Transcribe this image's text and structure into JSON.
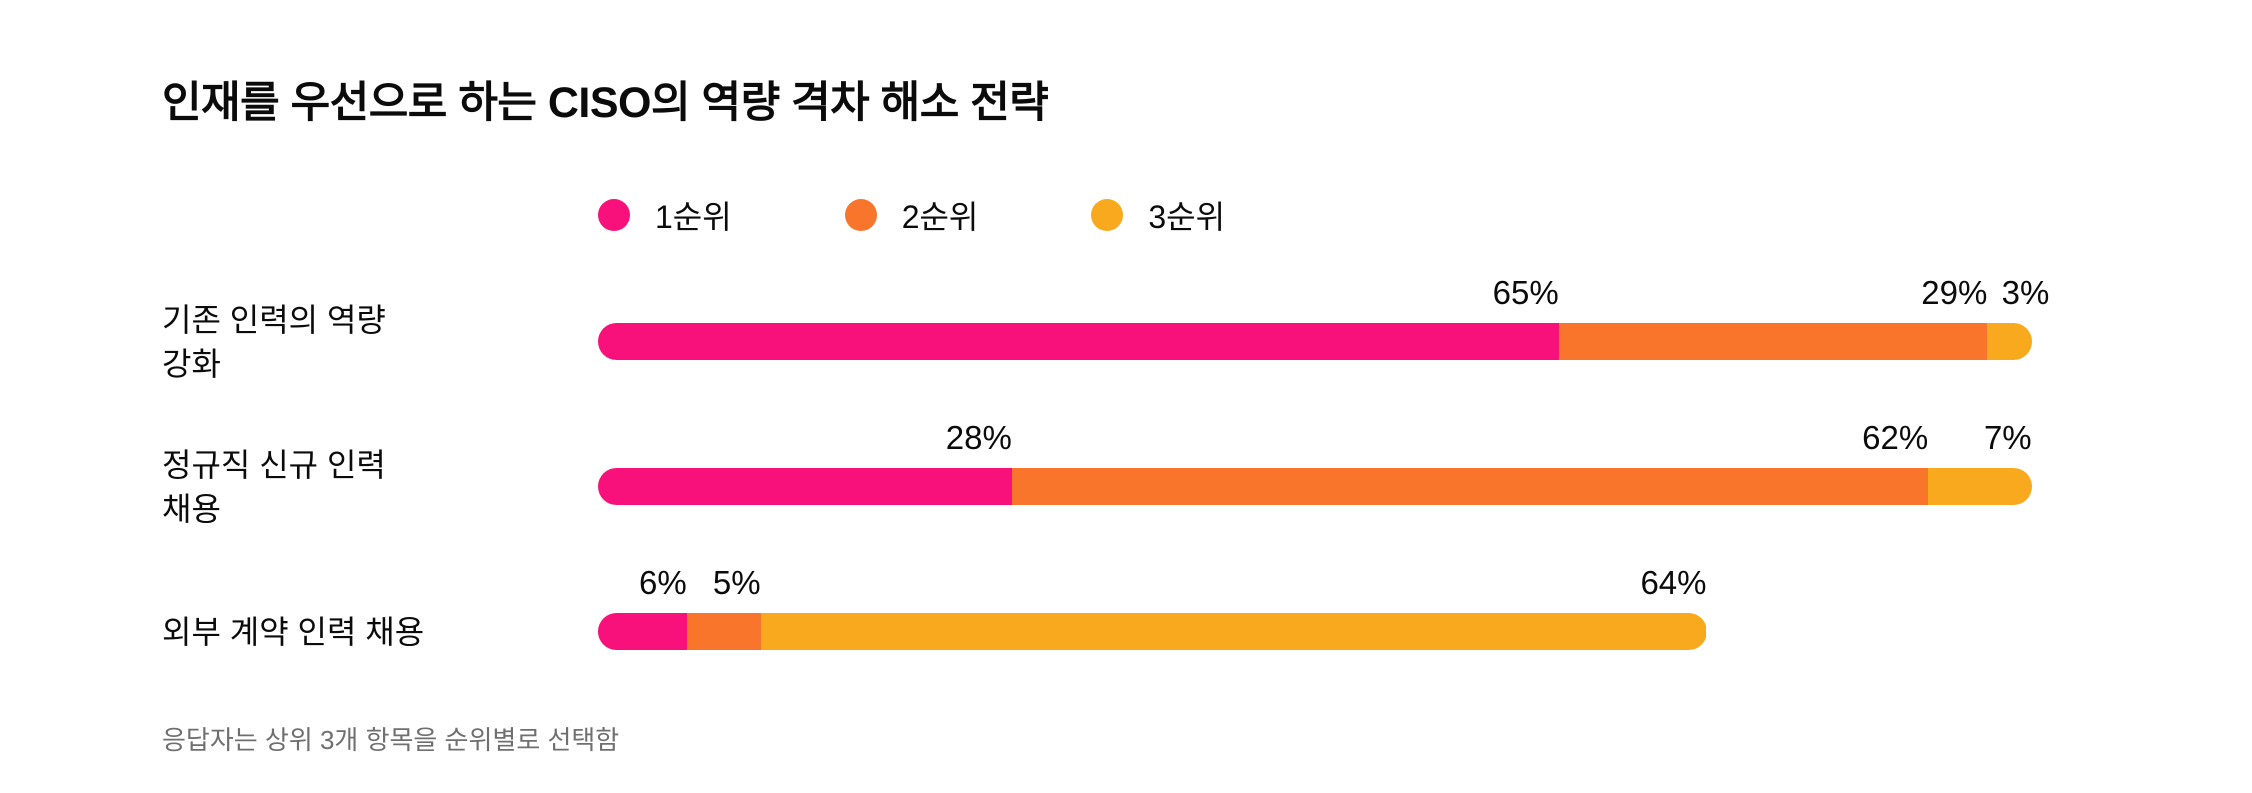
{
  "chart": {
    "title": "인재를 우선으로 하는 CISO의 역량 격차 해소 전략",
    "footnote": "응답자는 상위 3개 항목을 순위별로 선택함"
  },
  "legend": {
    "items": [
      {
        "label": "1순위",
        "color": "#F8117A"
      },
      {
        "label": "2순위",
        "color": "#F8752B"
      },
      {
        "label": "3순위",
        "color": "#F9A91D"
      }
    ]
  },
  "chart_data": {
    "type": "bar",
    "orientation": "horizontal",
    "stacked": true,
    "unit": "%",
    "title": "인재를 우선으로 하는 CISO의 역량 격차 해소 전략",
    "categories": [
      "기존 인력의 역량\n강화",
      "정규직 신규 인력\n채용",
      "외부 계약 인력 채용"
    ],
    "series": [
      {
        "name": "1순위",
        "color": "#F8117A",
        "values": [
          65,
          28,
          6
        ]
      },
      {
        "name": "2순위",
        "color": "#F8752B",
        "values": [
          29,
          62,
          5
        ]
      },
      {
        "name": "3순위",
        "color": "#F9A91D",
        "values": [
          3,
          7,
          64
        ]
      }
    ],
    "value_labels": [
      [
        "65%",
        "29%",
        "3%"
      ],
      [
        "28%",
        "62%",
        "7%"
      ],
      [
        "6%",
        "5%",
        "64%"
      ]
    ],
    "xlim": [
      0,
      100
    ],
    "grid": false,
    "legend_position": "top",
    "footnote": "응답자는 상위 3개 항목을 순위별로 선택함"
  }
}
